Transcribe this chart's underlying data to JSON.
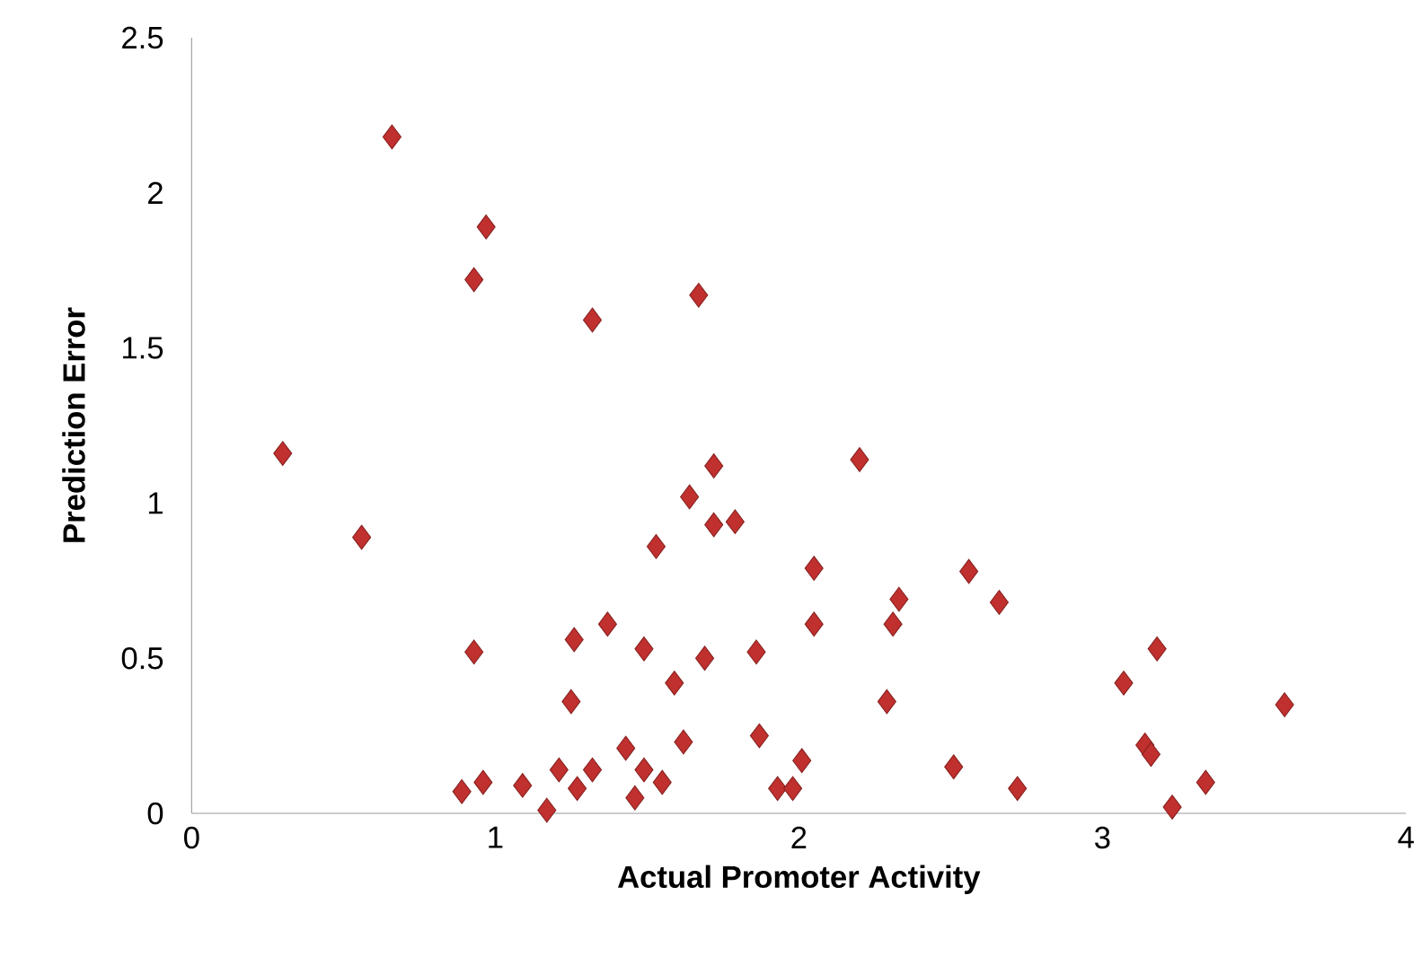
{
  "chart_data": {
    "type": "scatter",
    "xlabel": "Actual Promoter Activity",
    "ylabel": "Prediction Error",
    "xlim": [
      0,
      4
    ],
    "xticks": [
      0,
      1,
      2,
      3,
      4
    ],
    "ylim": [
      0,
      2.5
    ],
    "yticks": [
      0,
      0.5,
      1,
      1.5,
      2,
      2.5
    ],
    "marker": "diamond",
    "series": [
      {
        "color": "#c0302e",
        "x": [
          0.3,
          0.56,
          0.66,
          0.93,
          0.97,
          1.32,
          1.67,
          0.93,
          0.89,
          0.96,
          1.09,
          1.17,
          1.21,
          1.25,
          1.26,
          1.27,
          1.32,
          1.37,
          1.43,
          1.46,
          1.49,
          1.49,
          1.53,
          1.55,
          1.59,
          1.62,
          1.64,
          1.69,
          1.72,
          1.72,
          1.79,
          1.86,
          1.87,
          1.93,
          1.98,
          2.01,
          2.05,
          2.05,
          2.2,
          2.29,
          2.33,
          2.31,
          2.51,
          2.56,
          2.66,
          2.72,
          3.07,
          3.14,
          3.16,
          3.18,
          3.23,
          3.34,
          3.6
        ],
        "values": [
          1.16,
          0.89,
          2.18,
          1.72,
          1.89,
          1.59,
          1.67,
          0.52,
          0.07,
          0.1,
          0.09,
          0.01,
          0.14,
          0.36,
          0.56,
          0.08,
          0.14,
          0.61,
          0.21,
          0.05,
          0.53,
          0.14,
          0.86,
          0.1,
          0.42,
          0.23,
          1.02,
          0.5,
          1.12,
          0.93,
          0.94,
          0.52,
          0.25,
          0.08,
          0.08,
          0.17,
          0.79,
          0.61,
          1.14,
          0.36,
          0.69,
          0.61,
          0.15,
          0.78,
          0.68,
          0.08,
          0.42,
          0.22,
          0.19,
          0.53,
          0.02,
          0.1,
          0.35
        ]
      }
    ]
  }
}
